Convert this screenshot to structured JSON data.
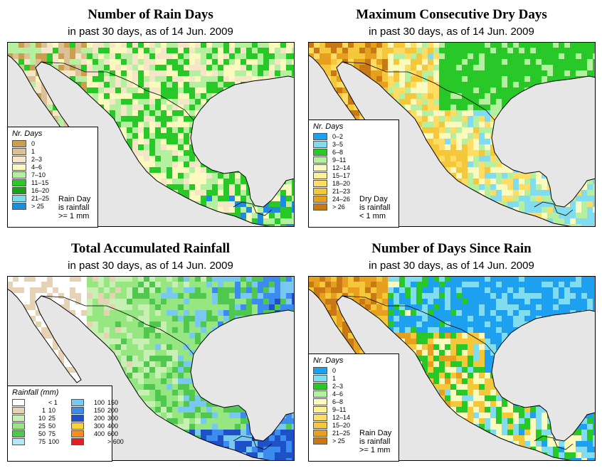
{
  "panels": [
    {
      "title": "Number of Rain Days",
      "subtitle": "in past 30 days, as of  14 Jun. 2009",
      "legend_title": "Nr. Days",
      "legend_items": [
        {
          "label": "0",
          "color": "#c8a050"
        },
        {
          "label": "1",
          "color": "#dcc096"
        },
        {
          "label": "2–3",
          "color": "#f5e6c8"
        },
        {
          "label": "4–6",
          "color": "#fafabe"
        },
        {
          "label": "7–10",
          "color": "#b4f0a0"
        },
        {
          "label": "11–15",
          "color": "#28c828"
        },
        {
          "label": "16–20",
          "color": "#1ea01e"
        },
        {
          "label": "21–25",
          "color": "#78dcf0"
        },
        {
          "label": "> 25",
          "color": "#1e8cdc"
        }
      ],
      "note": [
        "Rain Day",
        "is rainfall",
        ">= 1 mm"
      ]
    },
    {
      "title": "Maximum Consecutive Dry Days",
      "subtitle": "in past 30 days, as of  14 Jun. 2009",
      "legend_title": "Nr. Days",
      "legend_items": [
        {
          "label": "0–2",
          "color": "#1ea0f0"
        },
        {
          "label": "3–5",
          "color": "#82dcf0"
        },
        {
          "label": "6–8",
          "color": "#28c828"
        },
        {
          "label": "9–11",
          "color": "#b4f0a0"
        },
        {
          "label": "12–14",
          "color": "#fafabe"
        },
        {
          "label": "15–17",
          "color": "#fff096"
        },
        {
          "label": "18–20",
          "color": "#ffdc64"
        },
        {
          "label": "21–23",
          "color": "#f5c83c"
        },
        {
          "label": "24–26",
          "color": "#e6a01e"
        },
        {
          "label": "> 26",
          "color": "#c87814"
        }
      ],
      "note": [
        "Dry Day",
        "is rainfall",
        "< 1 mm"
      ]
    },
    {
      "title": "Total Accumulated Rainfall",
      "subtitle": "in past 30 days, as of  14 Jun. 2009",
      "legend_title": "Rainfall (mm)",
      "legend_cols": [
        [
          {
            "lo": "",
            "hi": "< 1",
            "color": "#ffffff"
          },
          {
            "lo": "1",
            "hi": "10",
            "color": "#e6d2b4"
          },
          {
            "lo": "10",
            "hi": "25",
            "color": "#c8f0b4"
          },
          {
            "lo": "25",
            "hi": "50",
            "color": "#96e682"
          },
          {
            "lo": "50",
            "hi": "75",
            "color": "#50c850"
          },
          {
            "lo": "75",
            "hi": "100",
            "color": "#b4e6f5"
          }
        ],
        [
          {
            "lo": "100",
            "hi": "150",
            "color": "#78c8f0"
          },
          {
            "lo": "150",
            "hi": "200",
            "color": "#3c8cf0"
          },
          {
            "lo": "200",
            "hi": "300",
            "color": "#1e50c8"
          },
          {
            "lo": "300",
            "hi": "400",
            "color": "#ffd232"
          },
          {
            "lo": "400",
            "hi": "600",
            "color": "#ff8c1e"
          },
          {
            "lo": "",
            "hi": "> 600",
            "color": "#e61e1e"
          }
        ]
      ]
    },
    {
      "title": "Number of Days Since Rain",
      "subtitle": "in past 30 days, as of  14 Jun. 2009",
      "legend_title": "Nr. Days",
      "legend_items": [
        {
          "label": "0",
          "color": "#1ea0f0"
        },
        {
          "label": "1",
          "color": "#82dcf0"
        },
        {
          "label": "2–3",
          "color": "#28c828"
        },
        {
          "label": "4–6",
          "color": "#b4f0a0"
        },
        {
          "label": "6–8",
          "color": "#fafabe"
        },
        {
          "label": "9–11",
          "color": "#fff096"
        },
        {
          "label": "12–14",
          "color": "#ffdc64"
        },
        {
          "label": "15–20",
          "color": "#f5c83c"
        },
        {
          "label": "21–25",
          "color": "#e6a01e"
        },
        {
          "label": "> 25",
          "color": "#c87814"
        }
      ],
      "note": [
        "Rain Day",
        "is rainfall",
        ">= 1 mm"
      ]
    }
  ]
}
